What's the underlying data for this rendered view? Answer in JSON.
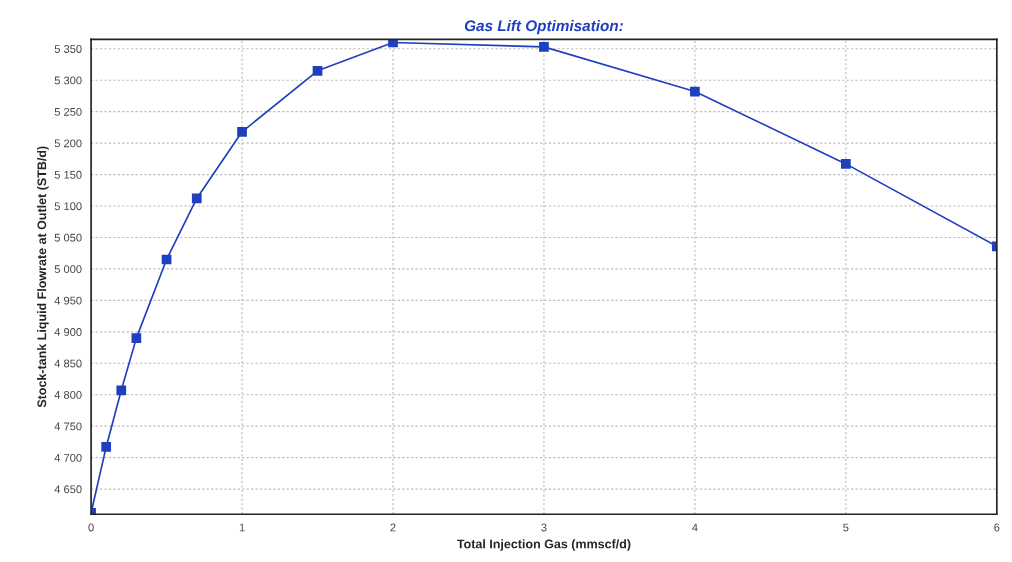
{
  "chart_data": {
    "type": "line",
    "title": "Gas Lift Optimisation:",
    "xlabel": "Total Injection Gas (mmscf/d)",
    "ylabel": "Stock-tank Liquid Flowrate at Outlet (STB/d)",
    "x": [
      0,
      0.1,
      0.2,
      0.3,
      0.5,
      0.7,
      1,
      1.5,
      2,
      3,
      4,
      5,
      6
    ],
    "series": [
      {
        "color": "#1f3fbf",
        "values": [
          4612,
          4717,
          4807,
          4890,
          5015,
          5112,
          5218,
          5315,
          5360,
          5353,
          5282,
          5167,
          5036
        ]
      }
    ],
    "xlim": [
      0,
      6
    ],
    "xticks": [
      0,
      1,
      2,
      3,
      4,
      5,
      6
    ],
    "ylim": [
      4610,
      5365
    ],
    "yticks": [
      {
        "value": 4650,
        "label": "4 650"
      },
      {
        "value": 4700,
        "label": "4 700"
      },
      {
        "value": 4750,
        "label": "4 750"
      },
      {
        "value": 4800,
        "label": "4 800"
      },
      {
        "value": 4850,
        "label": "4 850"
      },
      {
        "value": 4900,
        "label": "4 900"
      },
      {
        "value": 4950,
        "label": "4 950"
      },
      {
        "value": 5000,
        "label": "5 000"
      },
      {
        "value": 5050,
        "label": "5 050"
      },
      {
        "value": 5100,
        "label": "5 100"
      },
      {
        "value": 5150,
        "label": "5 150"
      },
      {
        "value": 5200,
        "label": "5 200"
      },
      {
        "value": 5250,
        "label": "5 250"
      },
      {
        "value": 5300,
        "label": "5 300"
      },
      {
        "value": 5350,
        "label": "5 350"
      }
    ],
    "grid": true,
    "marker": "square",
    "line_style": "solid"
  }
}
